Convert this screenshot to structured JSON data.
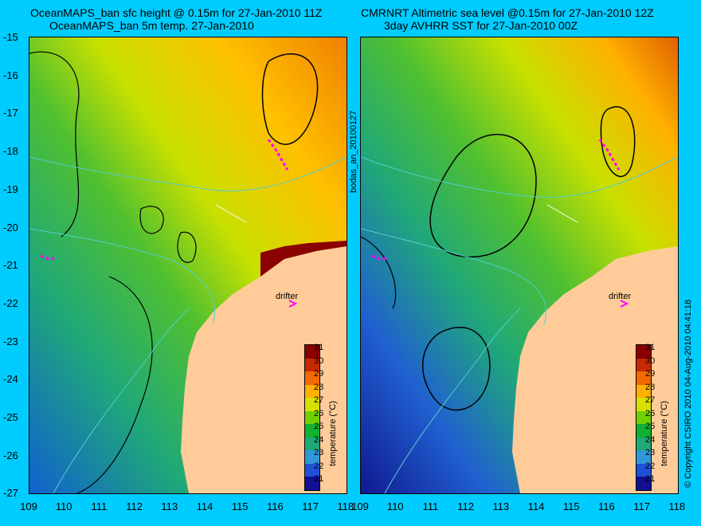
{
  "left_title_line1": "OceanMAPS_ban sfc height @ 0.15m for 27-Jan-2010 11Z",
  "left_title_line2": "OceanMAPS_ban 5m temp. 27-Jan-2010",
  "right_title_line1": "CMRNRT Altimetric sea level  @0.15m  for 27-Jan-2010 12Z",
  "right_title_line2": "3day AVHRR SST for 27-Jan-2010 00Z",
  "y_ticks": [
    "-15",
    "-16",
    "-17",
    "-18",
    "-19",
    "-20",
    "-21",
    "-22",
    "-23",
    "-24",
    "-25",
    "-26",
    "-27"
  ],
  "x_ticks": [
    "109",
    "110",
    "111",
    "112",
    "113",
    "114",
    "115",
    "116",
    "117",
    "118"
  ],
  "colorbar": {
    "label": "temperature (°C)",
    "ticks": [
      "31",
      "30",
      "29",
      "28",
      "27",
      "26",
      "25",
      "24",
      "23",
      "22",
      "21"
    ],
    "colors": [
      "#8b0000",
      "#c62a00",
      "#f26a00",
      "#ffb000",
      "#d8e000",
      "#70d000",
      "#10b030",
      "#20a878",
      "#3098d8",
      "#2050d8",
      "#101090"
    ]
  },
  "middle_label": "bodas_an_20100127",
  "right_edge_label": "© Copyright CSIRO 2010   04-Aug-2010 04:41:18",
  "drifter_label": "drifter",
  "colors": {
    "background": "#00ccff",
    "land": "#ffcc99",
    "contour": "#000000",
    "isobath": "#55cccc",
    "track": "#ff00ff"
  }
}
